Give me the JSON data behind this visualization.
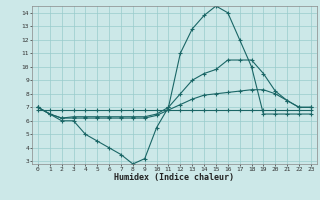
{
  "xlabel": "Humidex (Indice chaleur)",
  "bg_color": "#cce8e8",
  "grid_color": "#99cccc",
  "line_color": "#1a6666",
  "line1_y": [
    7.0,
    6.5,
    6.0,
    6.0,
    5.0,
    4.5,
    4.0,
    3.5,
    2.8,
    3.2,
    5.5,
    7.0,
    11.0,
    12.8,
    13.8,
    14.5,
    14.0,
    12.0,
    10.0,
    6.5,
    6.5,
    6.5,
    6.5,
    6.5
  ],
  "line2_y": [
    7.0,
    6.5,
    6.2,
    6.3,
    6.3,
    6.3,
    6.3,
    6.3,
    6.3,
    6.3,
    6.5,
    7.0,
    8.0,
    9.0,
    9.5,
    9.8,
    10.5,
    10.5,
    10.5,
    9.5,
    8.2,
    7.5,
    7.0,
    7.0
  ],
  "line3_y": [
    6.8,
    6.8,
    6.8,
    6.8,
    6.8,
    6.8,
    6.8,
    6.8,
    6.8,
    6.8,
    6.8,
    6.8,
    6.8,
    6.8,
    6.8,
    6.8,
    6.8,
    6.8,
    6.8,
    6.8,
    6.8,
    6.8,
    6.8,
    6.8
  ],
  "line4_y": [
    7.0,
    6.5,
    6.2,
    6.2,
    6.2,
    6.2,
    6.2,
    6.2,
    6.2,
    6.2,
    6.4,
    6.8,
    7.2,
    7.6,
    7.9,
    8.0,
    8.1,
    8.2,
    8.3,
    8.3,
    8.0,
    7.5,
    7.0,
    7.0
  ],
  "xlim": [
    -0.5,
    23.5
  ],
  "ylim": [
    2.8,
    14.5
  ],
  "xticks": [
    0,
    1,
    2,
    3,
    4,
    5,
    6,
    7,
    8,
    9,
    10,
    11,
    12,
    13,
    14,
    15,
    16,
    17,
    18,
    19,
    20,
    21,
    22,
    23
  ],
  "yticks": [
    3,
    4,
    5,
    6,
    7,
    8,
    9,
    10,
    11,
    12,
    13,
    14
  ]
}
